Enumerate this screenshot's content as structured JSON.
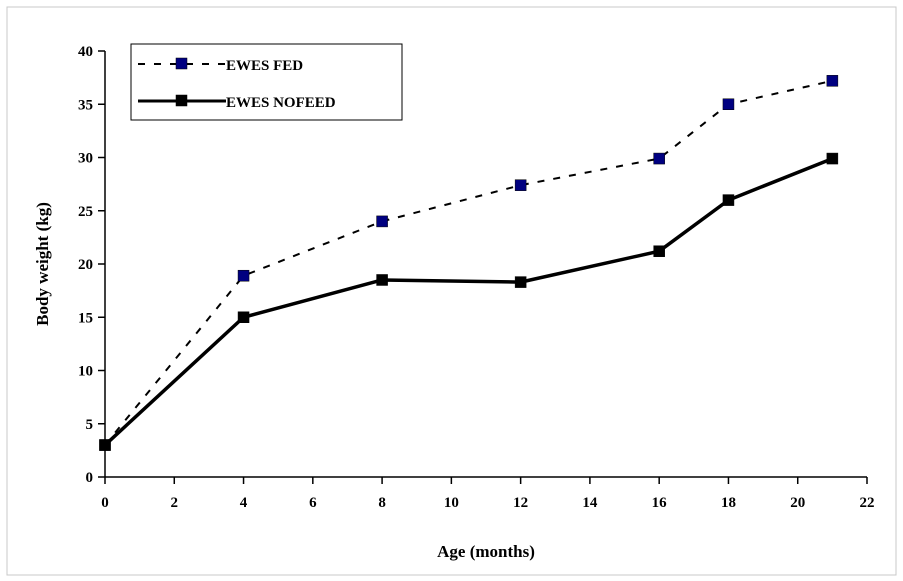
{
  "chart_data": {
    "type": "line",
    "xlabel": "Age (months)",
    "ylabel": "Body weight (kg)",
    "xlim": [
      0,
      22
    ],
    "ylim": [
      0,
      40
    ],
    "xticks": [
      "0",
      "2",
      "4",
      "6",
      "8",
      "10",
      "12",
      "14",
      "16",
      "18",
      "20",
      "22"
    ],
    "yticks": [
      "0",
      "5",
      "10",
      "15",
      "20",
      "25",
      "30",
      "35",
      "40"
    ],
    "grid": false,
    "legend_position": "top-left",
    "series": [
      {
        "name": "EWES FED",
        "style": "dashed",
        "color": "#000080",
        "x": [
          0,
          4,
          8,
          12,
          16,
          18,
          21
        ],
        "values": [
          3,
          18.9,
          24,
          27.4,
          29.9,
          35,
          37.2
        ]
      },
      {
        "name": "EWES NOFEED",
        "style": "solid",
        "color": "#000000",
        "x": [
          0,
          4,
          8,
          12,
          16,
          18,
          21
        ],
        "values": [
          3,
          15,
          18.5,
          18.3,
          21.2,
          26,
          29.9
        ]
      }
    ]
  }
}
